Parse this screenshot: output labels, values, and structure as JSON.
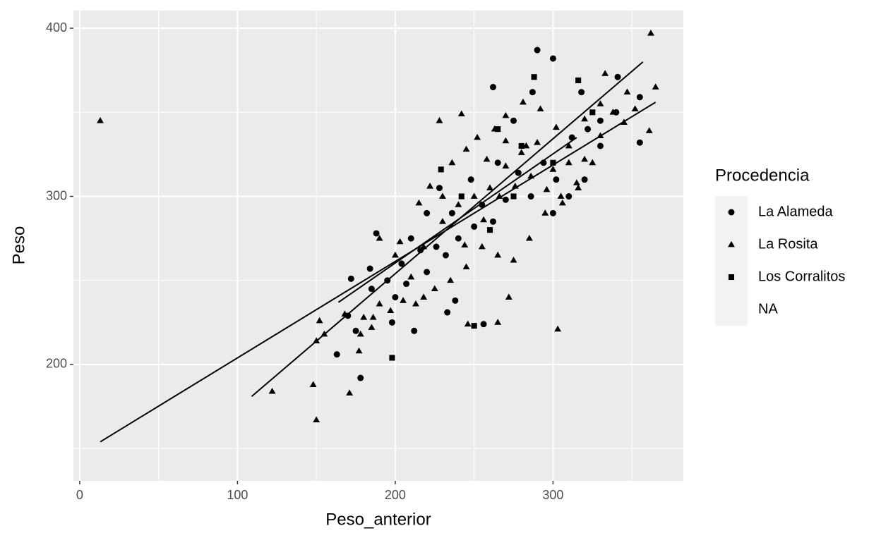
{
  "chart_data": {
    "type": "scatter",
    "x_label": "Peso_anterior",
    "y_label": "Peso",
    "xlim": [
      -4,
      382.6
    ],
    "ylim": [
      130.8,
      410.5
    ],
    "xticks": [
      0,
      100,
      200,
      300
    ],
    "yticks": [
      200,
      300,
      400
    ],
    "minor_xticks": [
      50,
      150,
      250,
      350
    ],
    "minor_yticks": [
      150,
      250,
      350
    ],
    "grid": true,
    "color": "#000000",
    "legend": {
      "title": "Procedencia",
      "position": "right"
    },
    "series": [
      {
        "name": "La Alameda",
        "shape": "circle",
        "x": [
          163,
          175,
          178,
          184,
          172,
          188,
          198,
          212,
          233,
          238,
          256,
          262,
          290,
          300,
          355,
          355,
          341,
          318,
          330,
          210,
          220,
          228,
          236,
          248,
          255,
          262,
          270,
          278,
          286,
          294,
          302,
          312,
          322,
          330,
          340,
          204,
          216,
          226,
          240,
          250,
          265,
          275,
          287,
          300,
          310,
          320,
          195,
          207,
          220,
          232,
          170,
          200,
          185
        ],
        "values": [
          206,
          220,
          192,
          257,
          251,
          278,
          225,
          220,
          231,
          238,
          224,
          365,
          387,
          382,
          332,
          359,
          371,
          362,
          345,
          275,
          290,
          305,
          290,
          310,
          295,
          285,
          298,
          314,
          300,
          320,
          310,
          335,
          340,
          330,
          350,
          260,
          268,
          270,
          275,
          282,
          320,
          345,
          362,
          290,
          300,
          310,
          250,
          248,
          255,
          265,
          229,
          240,
          245
        ]
      },
      {
        "name": "La Rosita",
        "shape": "triangle",
        "x": [
          13,
          362,
          365,
          361,
          347,
          333,
          303,
          272,
          265,
          246,
          228,
          242,
          122,
          148,
          150,
          171,
          152,
          150,
          155,
          168,
          177,
          178,
          185,
          190,
          197,
          205,
          213,
          218,
          210,
          200,
          190,
          203,
          215,
          222,
          230,
          236,
          245,
          252,
          258,
          263,
          270,
          281,
          292,
          302,
          310,
          320,
          330,
          338,
          345,
          352,
          325,
          315,
          305,
          295,
          285,
          275,
          265,
          255,
          245,
          235,
          225,
          218,
          230,
          240,
          250,
          260,
          270,
          280,
          290,
          300,
          310,
          320,
          330,
          283,
          270,
          180,
          186,
          244,
          256,
          266,
          276,
          286,
          296,
          306,
          316
        ],
        "values": [
          345,
          397,
          365,
          339,
          362,
          373,
          221,
          240,
          225,
          224,
          345,
          349,
          184,
          188,
          167,
          183,
          226,
          214,
          218,
          230,
          208,
          218,
          222,
          236,
          232,
          238,
          236,
          240,
          252,
          265,
          275,
          273,
          296,
          306,
          300,
          320,
          328,
          335,
          322,
          340,
          348,
          356,
          352,
          341,
          330,
          346,
          355,
          350,
          344,
          352,
          320,
          308,
          300,
          290,
          275,
          262,
          265,
          270,
          258,
          250,
          245,
          270,
          285,
          295,
          300,
          305,
          318,
          326,
          332,
          316,
          320,
          322,
          336,
          330,
          333,
          228,
          228,
          271,
          286,
          300,
          306,
          312,
          304,
          296,
          305
        ]
      },
      {
        "name": "Los Corralitos",
        "shape": "square",
        "x": [
          198,
          250,
          288,
          316,
          229,
          242,
          265,
          275,
          300,
          260,
          280,
          325
        ],
        "values": [
          204,
          223,
          371,
          369,
          316,
          300,
          340,
          300,
          320,
          280,
          330,
          350
        ]
      },
      {
        "name": "NA",
        "shape": null,
        "x": [],
        "values": []
      }
    ],
    "fits": [
      {
        "x": [
          13,
          365
        ],
        "values": [
          154,
          356
        ]
      },
      {
        "x": [
          109,
          357
        ],
        "values": [
          181,
          380
        ]
      },
      {
        "x": [
          164,
          315
        ],
        "values": [
          237,
          335
        ]
      }
    ]
  }
}
